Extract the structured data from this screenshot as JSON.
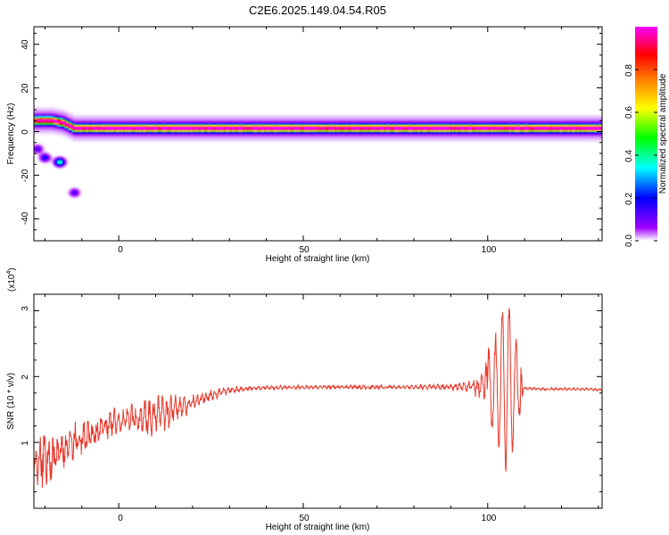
{
  "title": "C2E6.2025.149.04.54.R05",
  "chart_data": [
    {
      "type": "heatmap",
      "xlabel": "Height of straight line (km)",
      "ylabel": "Frequency (Hz)",
      "xlim": [
        -23,
        131
      ],
      "ylim": [
        -50,
        48
      ],
      "x_ticks": [
        "0",
        "50",
        "100"
      ],
      "y_ticks": [
        "40",
        "20",
        "0",
        "-20",
        "-40"
      ],
      "colorbar": {
        "label": "Normalized spectral amplitude",
        "range": [
          0,
          1
        ],
        "ticks": [
          "0.0",
          "0.2",
          "0.4",
          "0.6",
          "0.8"
        ],
        "colors": [
          "#ffffff",
          "#a000ff",
          "#0000ff",
          "#00ffff",
          "#00ff00",
          "#ffff00",
          "#ff8000",
          "#ff0000",
          "#ff00ff"
        ]
      },
      "ridge": {
        "description_frequency_hz": [
          [
            -23,
            5
          ],
          [
            -18,
            5
          ],
          [
            -15,
            4
          ],
          [
            -12,
            1.5
          ],
          [
            0,
            1.5
          ],
          [
            20,
            1.5
          ],
          [
            60,
            1.5
          ],
          [
            100,
            1.5
          ],
          [
            131,
            1.5
          ]
        ],
        "peak_amplitude": 1.0
      },
      "blobs": [
        {
          "x": -22,
          "y": -8,
          "amp": 0.2
        },
        {
          "x": -20,
          "y": -12,
          "amp": 0.25
        },
        {
          "x": -16,
          "y": -14,
          "amp": 0.45
        },
        {
          "x": -12,
          "y": -28,
          "amp": 0.2
        }
      ]
    },
    {
      "type": "line",
      "xlabel": "Height of straight line (km)",
      "ylabel": "SNR (10 * v/v)",
      "y_multiplier": "(x10",
      "y_multiplier_exp": "4",
      "y_multiplier_close": ")",
      "xlim": [
        -23,
        131
      ],
      "ylim": [
        0,
        3.25
      ],
      "x_ticks": [
        "0",
        "50",
        "100"
      ],
      "y_ticks": [
        "1",
        "2",
        "3"
      ],
      "color": "#e8372a",
      "series": [
        {
          "x": [
            -23,
            -20,
            -18,
            -15,
            -12,
            -10,
            -7,
            -5,
            -2,
            0,
            3,
            5,
            8,
            10,
            13,
            15,
            18,
            20,
            25,
            30,
            35,
            40,
            50,
            60,
            70,
            80,
            90,
            95,
            98,
            100,
            102,
            104,
            105,
            106,
            107,
            108,
            109,
            110,
            115,
            120,
            125,
            131
          ],
          "y": [
            0.6,
            0.8,
            0.75,
            0.9,
            1.0,
            1.1,
            1.1,
            1.2,
            1.3,
            1.3,
            1.35,
            1.35,
            1.4,
            1.45,
            1.45,
            1.5,
            1.55,
            1.6,
            1.72,
            1.8,
            1.82,
            1.83,
            1.84,
            1.84,
            1.84,
            1.84,
            1.84,
            1.85,
            1.85,
            1.9,
            1.8,
            1.9,
            2.0,
            1.9,
            1.8,
            1.9,
            1.85,
            1.82,
            1.81,
            1.81,
            1.81,
            1.8
          ],
          "noise_amplitude": [
            0.35,
            0.45,
            0.35,
            0.3,
            0.3,
            0.25,
            0.25,
            0.2,
            0.2,
            0.2,
            0.2,
            0.25,
            0.3,
            0.3,
            0.25,
            0.2,
            0.15,
            0.12,
            0.08,
            0.05,
            0.03,
            0.03,
            0.03,
            0.03,
            0.03,
            0.03,
            0.05,
            0.1,
            0.2,
            0.4,
            0.7,
            1.0,
            1.3,
            1.0,
            0.8,
            0.6,
            0.3,
            0.02,
            0.02,
            0.02,
            0.02,
            0.02
          ]
        }
      ]
    }
  ]
}
